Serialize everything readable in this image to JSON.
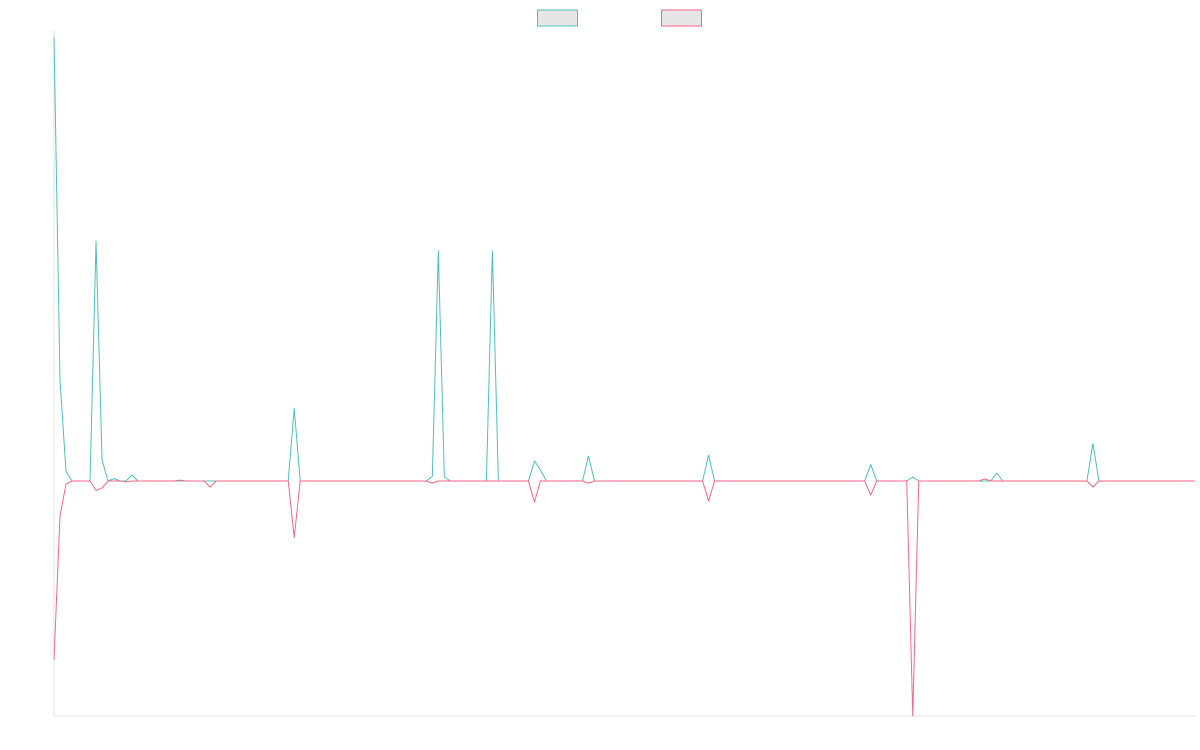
{
  "chart_data": {
    "type": "line",
    "legend": "top",
    "categories": [
      null,
      null,
      null,
      null,
      null,
      null,
      null,
      null,
      null,
      null,
      null,
      null,
      null,
      null,
      null,
      null,
      null,
      null,
      null,
      null,
      null,
      null,
      null,
      null,
      null,
      null,
      null,
      null,
      null,
      null,
      null,
      null,
      null,
      null,
      null,
      null,
      null,
      null,
      null,
      null,
      null,
      null,
      null,
      null,
      null,
      null,
      null,
      null,
      null,
      null,
      null,
      null,
      null,
      null,
      null,
      null,
      null,
      null,
      null,
      null,
      null,
      null,
      null,
      null,
      null,
      null,
      null,
      null,
      null,
      null,
      null,
      null,
      null,
      null,
      null,
      null,
      null,
      null,
      null,
      null,
      null,
      null,
      null,
      null,
      null,
      null,
      null,
      null,
      null,
      null,
      null,
      null,
      null,
      null,
      null,
      null,
      null,
      null,
      null,
      null,
      null,
      null,
      null,
      null,
      null,
      null,
      null,
      null,
      null,
      null,
      null,
      null,
      null,
      null,
      null,
      null,
      null,
      null,
      null,
      null,
      null,
      null,
      null,
      null,
      null,
      null,
      null,
      null,
      null,
      null,
      null,
      null,
      null,
      null,
      null,
      null,
      null,
      null,
      null,
      null,
      null,
      null,
      null,
      null,
      null,
      null,
      null,
      null,
      null,
      null,
      null,
      null,
      null,
      null,
      null,
      null,
      null,
      null,
      null,
      null,
      null,
      null,
      null,
      null,
      null,
      null,
      null,
      null,
      null,
      null,
      null,
      null,
      null,
      null,
      null,
      null,
      null,
      null,
      null,
      null,
      null,
      null,
      null,
      null,
      null,
      null,
      null,
      null,
      null,
      null,
      null
    ],
    "series": [
      {
        "color": "#4bc0c0",
        "values": [
          189,
          43,
          4,
          0,
          0,
          0,
          0,
          102,
          9,
          0,
          1,
          0,
          0,
          2.5,
          0,
          0,
          0,
          0,
          0,
          0,
          0,
          0,
          0,
          0,
          0,
          0,
          0,
          0,
          0,
          0,
          0,
          0,
          0,
          0,
          0,
          0,
          0,
          0,
          0,
          0,
          31,
          0,
          0,
          0,
          0,
          0,
          0,
          0,
          0,
          0,
          0,
          0,
          0,
          0,
          0,
          0,
          0,
          0,
          0,
          0,
          0,
          0,
          0,
          2,
          98,
          1.7,
          0,
          0,
          0,
          0,
          0,
          0,
          0,
          98,
          0,
          0,
          0,
          0,
          0,
          0,
          8.5,
          4.7,
          0,
          0,
          0,
          0,
          0,
          0,
          0,
          10.6,
          0,
          0,
          0,
          0,
          0,
          0,
          0,
          0,
          0,
          0,
          0,
          0,
          0,
          0,
          0,
          0,
          0,
          0,
          0,
          11,
          0,
          0,
          0,
          0,
          0,
          0,
          0,
          0,
          0,
          0,
          0,
          0,
          0,
          0,
          0,
          0,
          0,
          0,
          0,
          0,
          0,
          0,
          0,
          0,
          0,
          0,
          7,
          0,
          0,
          0,
          0,
          0,
          0,
          1.7,
          0,
          0,
          0,
          0,
          0,
          0,
          0,
          0,
          0,
          0,
          0,
          0,
          0,
          3.4,
          0,
          0,
          0,
          0,
          0,
          0,
          0,
          0,
          0,
          0,
          0,
          0,
          0,
          0,
          0,
          16,
          0,
          0,
          0,
          0,
          0,
          0,
          0,
          0,
          0,
          0,
          0,
          0,
          0,
          0,
          0,
          0,
          0
        ]
      },
      {
        "color": "#ff6384",
        "values": [
          -76,
          -15,
          -1.3,
          0,
          0,
          0,
          0,
          -4,
          -3,
          0,
          0,
          0,
          -0.4,
          0,
          0,
          0,
          0,
          0,
          0,
          0,
          0,
          0.4,
          0,
          0,
          0,
          0,
          -2.6,
          0,
          0,
          0,
          0,
          0,
          0,
          0,
          0,
          0,
          0,
          0,
          0,
          0,
          -24,
          0,
          0,
          0,
          0,
          0,
          0,
          0,
          0,
          0,
          0,
          0,
          0,
          0,
          0,
          0,
          0,
          0,
          0,
          0,
          0,
          0,
          0,
          -0.9,
          0,
          0,
          0,
          0,
          0,
          0,
          0,
          0,
          0,
          0,
          0,
          0,
          0,
          0,
          0,
          0,
          -9,
          0,
          0,
          0,
          0,
          0,
          0,
          0,
          0,
          -0.9,
          0,
          0,
          0,
          0,
          0,
          0,
          0,
          0,
          0,
          0,
          0,
          0,
          0,
          0,
          0,
          0,
          0,
          0,
          0,
          -8.5,
          0,
          0,
          0,
          0,
          0,
          0,
          0,
          0,
          0,
          0,
          0,
          0,
          0,
          0,
          0,
          0,
          0,
          0,
          0,
          0,
          0,
          0,
          0,
          0,
          0,
          0,
          -6,
          0,
          0,
          0,
          0,
          0,
          0,
          -100,
          0,
          0,
          0,
          0,
          0,
          0,
          0,
          0,
          0,
          0,
          0,
          0.9,
          0,
          0,
          0,
          0,
          0,
          0,
          0,
          0,
          0,
          0,
          0,
          0,
          0,
          0,
          0,
          0,
          0,
          -2.6,
          0,
          0,
          0,
          0,
          0,
          0,
          0,
          0,
          0,
          0,
          0,
          0,
          0,
          0,
          0,
          0,
          0
        ]
      }
    ],
    "ylim": [
      -100,
      190
    ]
  }
}
